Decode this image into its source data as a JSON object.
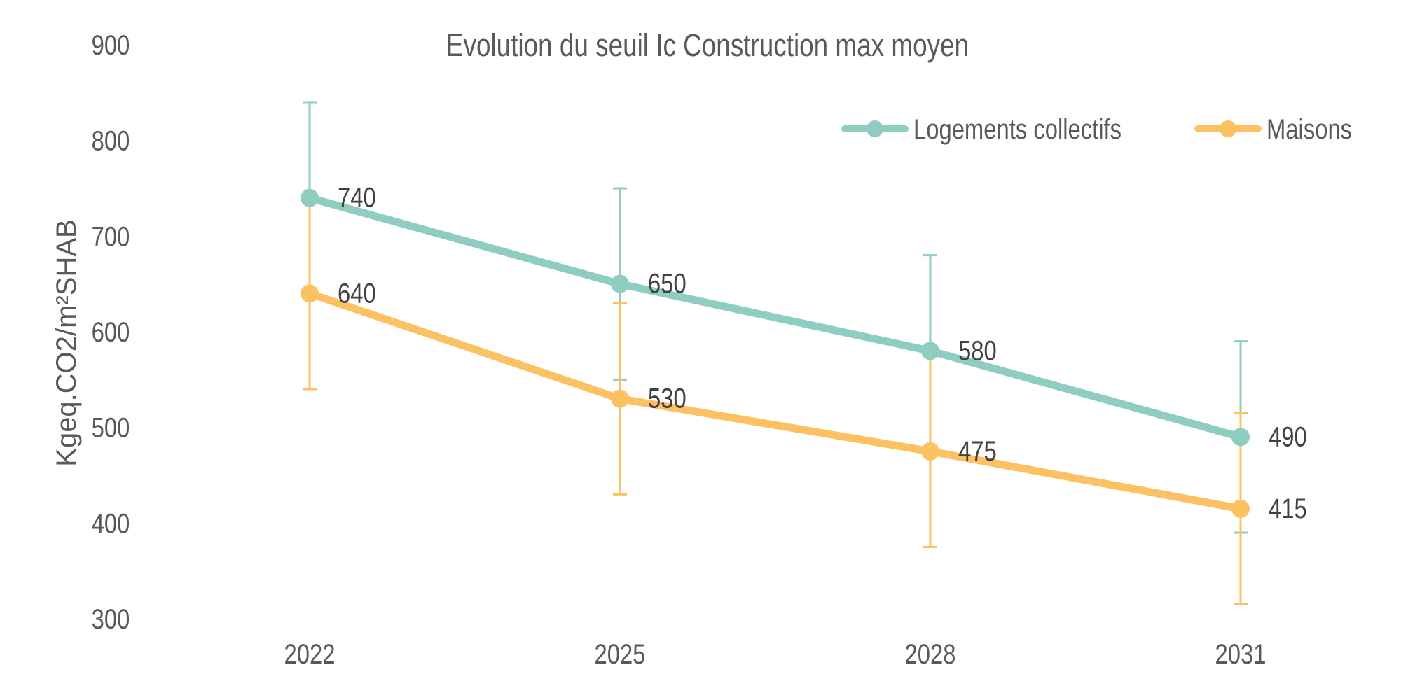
{
  "chart_data": {
    "type": "line",
    "title": "Evolution du seuil Ic Construction max moyen",
    "ylabel": "Kgeq.CO2/m²SHAB",
    "xlabel": "",
    "categories": [
      "2022",
      "2025",
      "2028",
      "2031"
    ],
    "ylim": [
      300,
      900
    ],
    "yticks": [
      300,
      400,
      500,
      600,
      700,
      800,
      900
    ],
    "grid": false,
    "legend_position": "top-right",
    "series": [
      {
        "name": "Logements collectifs",
        "color": "#8fcdc1",
        "values": [
          740,
          650,
          580,
          490
        ],
        "labels": [
          "740",
          "650",
          "580",
          "490"
        ],
        "error_low": [
          640,
          550,
          480,
          390
        ],
        "error_high": [
          840,
          750,
          680,
          590
        ]
      },
      {
        "name": "Maisons",
        "color": "#fcc163",
        "values": [
          640,
          530,
          475,
          415
        ],
        "labels": [
          "640",
          "530",
          "475",
          "415"
        ],
        "error_low": [
          540,
          430,
          375,
          315
        ],
        "error_high": [
          740,
          630,
          575,
          515
        ]
      }
    ]
  }
}
